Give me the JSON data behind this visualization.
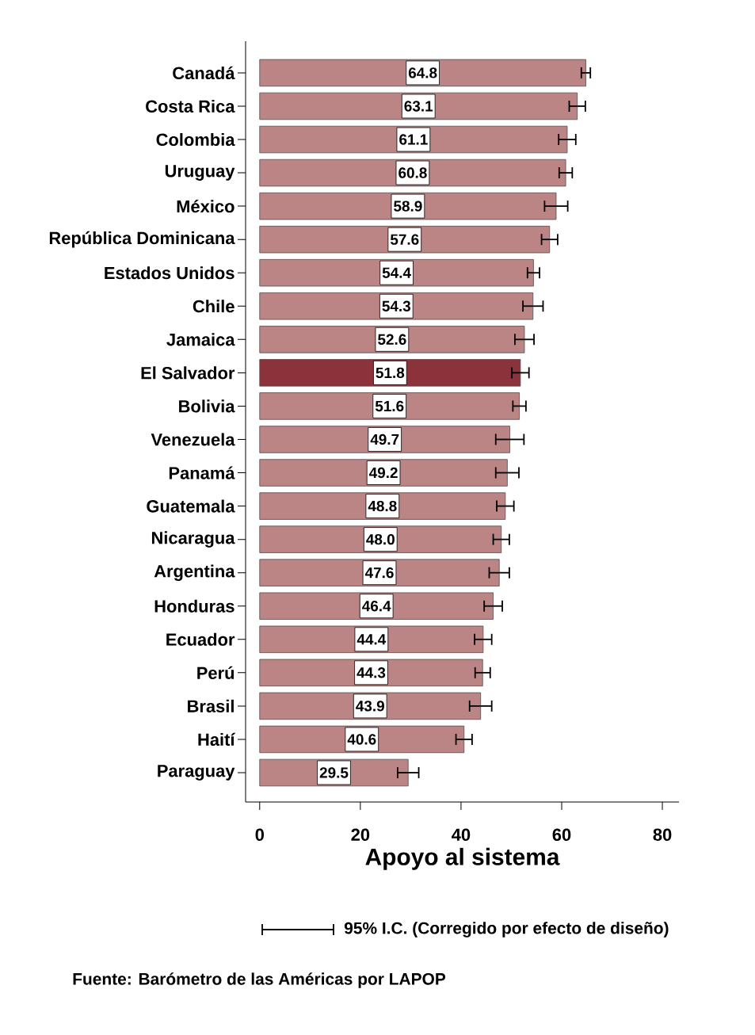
{
  "chart_data": {
    "type": "bar",
    "orientation": "horizontal",
    "xlabel": "Apoyo al sistema",
    "categories": [
      "Canadá",
      "Costa Rica",
      "Colombia",
      "Uruguay",
      "México",
      "República Dominicana",
      "Estados Unidos",
      "Chile",
      "Jamaica",
      "El Salvador",
      "Bolivia",
      "Venezuela",
      "Panamá",
      "Guatemala",
      "Nicaragua",
      "Argentina",
      "Honduras",
      "Ecuador",
      "Perú",
      "Brasil",
      "Haití",
      "Paraguay"
    ],
    "values": [
      64.8,
      63.1,
      61.1,
      60.8,
      58.9,
      57.6,
      54.4,
      54.3,
      52.6,
      51.8,
      51.6,
      49.7,
      49.2,
      48.8,
      48.0,
      47.6,
      46.4,
      44.4,
      44.3,
      43.9,
      40.6,
      29.5
    ],
    "value_labels": [
      "64.8",
      "63.1",
      "61.1",
      "60.8",
      "58.9",
      "57.6",
      "54.4",
      "54.3",
      "52.6",
      "51.8",
      "51.6",
      "49.7",
      "49.2",
      "48.8",
      "48.0",
      "47.6",
      "46.4",
      "44.4",
      "44.3",
      "43.9",
      "40.6",
      "29.5"
    ],
    "errors": [
      0.9,
      1.6,
      1.7,
      1.3,
      2.3,
      1.6,
      1.2,
      2.0,
      1.9,
      1.7,
      1.3,
      2.8,
      2.3,
      1.7,
      1.6,
      2.0,
      1.8,
      1.7,
      1.5,
      2.2,
      1.6,
      2.1
    ],
    "colors": [
      "#bc8585",
      "#bc8585",
      "#bc8585",
      "#bc8585",
      "#bc8585",
      "#bc8585",
      "#bc8585",
      "#bc8585",
      "#bc8585",
      "#8b323a",
      "#bc8585",
      "#bc8585",
      "#bc8585",
      "#bc8585",
      "#bc8585",
      "#bc8585",
      "#bc8585",
      "#bc8585",
      "#bc8585",
      "#bc8585",
      "#bc8585",
      "#bc8585"
    ],
    "xlim": [
      -2.8,
      83.3
    ],
    "xticks": [
      0,
      20,
      40,
      60,
      80
    ],
    "grid": false,
    "annotations": [
      "95% I.C. (Corregido por efecto de diseño)",
      "Fuente: Barómetro de las Américas por LAPOP"
    ]
  }
}
